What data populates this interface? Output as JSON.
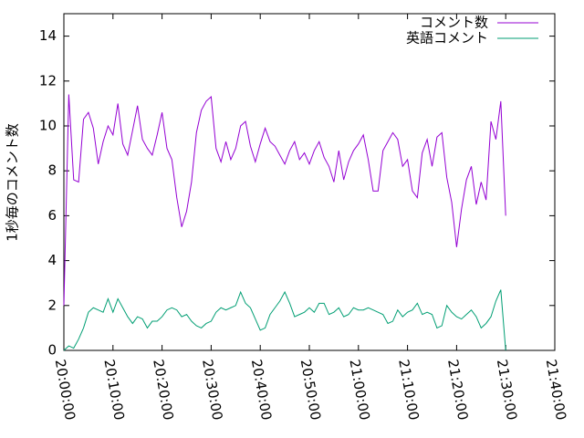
{
  "chart_data": {
    "type": "line",
    "y_label": "1秒毎のコメント数",
    "x": [
      "20:00:00",
      "20:01:00",
      "20:02:00",
      "20:03:00",
      "20:04:00",
      "20:05:00",
      "20:06:00",
      "20:07:00",
      "20:08:00",
      "20:09:00",
      "20:10:00",
      "20:11:00",
      "20:12:00",
      "20:13:00",
      "20:14:00",
      "20:15:00",
      "20:16:00",
      "20:17:00",
      "20:18:00",
      "20:19:00",
      "20:20:00",
      "20:21:00",
      "20:22:00",
      "20:23:00",
      "20:24:00",
      "20:25:00",
      "20:26:00",
      "20:27:00",
      "20:28:00",
      "20:29:00",
      "20:30:00",
      "20:31:00",
      "20:32:00",
      "20:33:00",
      "20:34:00",
      "20:35:00",
      "20:36:00",
      "20:37:00",
      "20:38:00",
      "20:39:00",
      "20:40:00",
      "20:41:00",
      "20:42:00",
      "20:43:00",
      "20:44:00",
      "20:45:00",
      "20:46:00",
      "20:47:00",
      "20:48:00",
      "20:49:00",
      "20:50:00",
      "20:51:00",
      "20:52:00",
      "20:53:00",
      "20:54:00",
      "20:55:00",
      "20:56:00",
      "20:57:00",
      "20:58:00",
      "20:59:00",
      "21:00:00",
      "21:01:00",
      "21:02:00",
      "21:03:00",
      "21:04:00",
      "21:05:00",
      "21:06:00",
      "21:07:00",
      "21:08:00",
      "21:09:00",
      "21:10:00",
      "21:11:00",
      "21:12:00",
      "21:13:00",
      "21:14:00",
      "21:15:00",
      "21:16:00",
      "21:17:00",
      "21:18:00",
      "21:19:00",
      "21:20:00",
      "21:21:00",
      "21:22:00",
      "21:23:00",
      "21:24:00",
      "21:25:00",
      "21:26:00",
      "21:27:00",
      "21:28:00",
      "21:29:00",
      "21:30:00"
    ],
    "series": [
      {
        "name": "コメント数",
        "color": "#9400d3",
        "values": [
          2.0,
          11.4,
          7.6,
          7.5,
          10.3,
          10.6,
          9.9,
          8.3,
          9.3,
          10.0,
          9.6,
          11.0,
          9.2,
          8.7,
          9.8,
          10.9,
          9.4,
          9.0,
          8.7,
          9.6,
          10.6,
          9.0,
          8.5,
          6.8,
          5.5,
          6.2,
          7.5,
          9.7,
          10.7,
          11.1,
          11.3,
          9.0,
          8.4,
          9.3,
          8.5,
          9.0,
          10.0,
          10.2,
          9.1,
          8.4,
          9.2,
          9.9,
          9.3,
          9.1,
          8.7,
          8.3,
          8.9,
          9.3,
          8.5,
          8.8,
          8.3,
          8.9,
          9.3,
          8.6,
          8.2,
          7.5,
          8.9,
          7.6,
          8.4,
          8.9,
          9.2,
          9.6,
          8.5,
          7.1,
          7.1,
          8.9,
          9.3,
          9.7,
          9.4,
          8.2,
          8.5,
          7.1,
          6.8,
          8.8,
          9.4,
          8.2,
          9.5,
          9.7,
          7.7,
          6.6,
          4.6,
          6.3,
          7.6,
          8.2,
          6.5,
          7.5,
          6.7,
          10.2,
          9.4,
          11.1,
          6.0
        ]
      },
      {
        "name": "英語コメント",
        "color": "#009e73",
        "values": [
          0,
          0.2,
          0.1,
          0.5,
          1.0,
          1.7,
          1.9,
          1.8,
          1.7,
          2.3,
          1.7,
          2.3,
          1.9,
          1.5,
          1.2,
          1.5,
          1.4,
          1.0,
          1.3,
          1.3,
          1.5,
          1.8,
          1.9,
          1.8,
          1.5,
          1.6,
          1.3,
          1.1,
          1.0,
          1.2,
          1.3,
          1.7,
          1.9,
          1.8,
          1.9,
          2.0,
          2.6,
          2.1,
          1.9,
          1.4,
          0.9,
          1.0,
          1.6,
          1.9,
          2.2,
          2.6,
          2.1,
          1.5,
          1.6,
          1.7,
          1.9,
          1.7,
          2.1,
          2.1,
          1.6,
          1.7,
          1.9,
          1.5,
          1.6,
          1.9,
          1.8,
          1.8,
          1.9,
          1.8,
          1.7,
          1.6,
          1.2,
          1.3,
          1.8,
          1.5,
          1.7,
          1.8,
          2.1,
          1.6,
          1.7,
          1.6,
          1.0,
          1.1,
          2.0,
          1.7,
          1.5,
          1.4,
          1.6,
          1.8,
          1.5,
          1.0,
          1.2,
          1.5,
          2.2,
          2.7,
          0
        ]
      }
    ],
    "xlim": [
      "20:00:00",
      "21:40:00"
    ],
    "xticks": [
      "20:00:00",
      "20:10:00",
      "20:20:00",
      "20:30:00",
      "20:40:00",
      "20:50:00",
      "21:00:00",
      "21:10:00",
      "21:20:00",
      "21:30:00",
      "21:40:00"
    ],
    "ylim": [
      0,
      15
    ],
    "yticks": [
      0,
      2,
      4,
      6,
      8,
      10,
      12,
      14
    ],
    "legend": "top-right"
  }
}
